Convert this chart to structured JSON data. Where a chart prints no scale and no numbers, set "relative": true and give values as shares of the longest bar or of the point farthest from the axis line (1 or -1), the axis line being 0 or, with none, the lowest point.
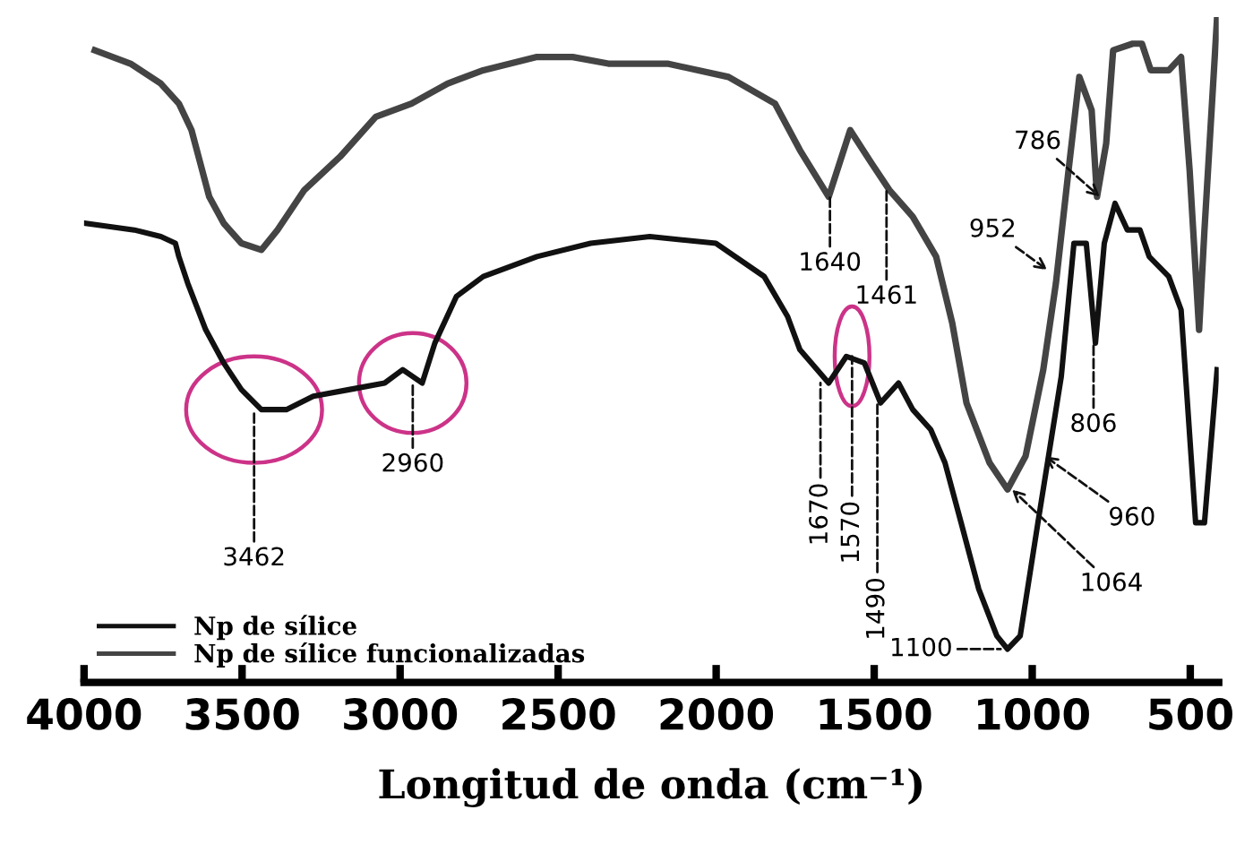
{
  "chart_data": {
    "type": "line",
    "relative": true,
    "xlabel": "Longitud de onda (cm⁻¹)",
    "xlim": [
      4000,
      410
    ],
    "xticks": [
      4000,
      3500,
      3000,
      2500,
      2000,
      1500,
      1000,
      500
    ],
    "grid": false,
    "legend": "bottom left",
    "marker": "none",
    "line_style": "solid",
    "series": [
      {
        "name": "Np de sílice",
        "color": "#111111",
        "x": [
          3994,
          3841,
          3757,
          3711,
          3700,
          3672,
          3615,
          3558,
          3502,
          3439,
          3360,
          3275,
          3162,
          3049,
          2992,
          2930,
          2890,
          2822,
          2737,
          2567,
          2397,
          2210,
          2001,
          1848,
          1774,
          1735,
          1644,
          1588,
          1531,
          1480,
          1423,
          1378,
          1321,
          1276,
          1225,
          1169,
          1112,
          1078,
          1038,
          982,
          908,
          868,
          829,
          800,
          772,
          738,
          699,
          659,
          630,
          568,
          529,
          483,
          455,
          415
        ],
        "values": [
          0.69,
          0.68,
          0.67,
          0.66,
          0.64,
          0.6,
          0.53,
          0.48,
          0.44,
          0.41,
          0.41,
          0.43,
          0.44,
          0.45,
          0.47,
          0.45,
          0.51,
          0.58,
          0.61,
          0.64,
          0.66,
          0.67,
          0.66,
          0.61,
          0.55,
          0.5,
          0.45,
          0.49,
          0.48,
          0.42,
          0.45,
          0.41,
          0.38,
          0.33,
          0.24,
          0.14,
          0.07,
          0.05,
          0.07,
          0.24,
          0.46,
          0.66,
          0.66,
          0.51,
          0.66,
          0.72,
          0.68,
          0.68,
          0.64,
          0.61,
          0.56,
          0.24,
          0.24,
          0.47
        ]
      },
      {
        "name": "Np de sílice funcionalizadas",
        "color": "#444444",
        "x": [
          3966,
          3853,
          3757,
          3700,
          3660,
          3632,
          3604,
          3558,
          3502,
          3439,
          3388,
          3303,
          3190,
          3077,
          2964,
          2850,
          2737,
          2567,
          2454,
          2341,
          2154,
          1961,
          1814,
          1735,
          1644,
          1576,
          1508,
          1452,
          1378,
          1304,
          1253,
          1208,
          1135,
          1078,
          1021,
          965,
          925,
          885,
          851,
          812,
          795,
          766,
          744,
          682,
          653,
          625,
          568,
          529,
          502,
          472,
          455,
          415
        ],
        "values": [
          0.95,
          0.93,
          0.9,
          0.87,
          0.83,
          0.78,
          0.73,
          0.69,
          0.66,
          0.65,
          0.68,
          0.74,
          0.79,
          0.85,
          0.87,
          0.9,
          0.92,
          0.94,
          0.94,
          0.93,
          0.93,
          0.91,
          0.87,
          0.8,
          0.73,
          0.83,
          0.78,
          0.74,
          0.7,
          0.64,
          0.54,
          0.42,
          0.33,
          0.29,
          0.34,
          0.47,
          0.6,
          0.77,
          0.91,
          0.86,
          0.73,
          0.81,
          0.95,
          0.96,
          0.96,
          0.92,
          0.92,
          0.94,
          0.77,
          0.53,
          0.68,
          1.0
        ]
      }
    ],
    "annotations": [
      {
        "text": "3462",
        "x": 3462,
        "y": 0.41
      },
      {
        "text": "2960",
        "x": 2960,
        "y": 0.45
      },
      {
        "text": "1640",
        "x": 1640,
        "y": 0.73
      },
      {
        "text": "1461",
        "x": 1461,
        "y": 0.74
      },
      {
        "text": "1670",
        "x": 1670,
        "y": 0.45
      },
      {
        "text": "1570",
        "x": 1570,
        "y": 0.49
      },
      {
        "text": "1490",
        "x": 1490,
        "y": 0.42
      },
      {
        "text": "1100",
        "x": 1100,
        "y": 0.05
      },
      {
        "text": "1064",
        "x": 1064,
        "y": 0.29
      },
      {
        "text": "960",
        "x": 960,
        "y": 0.34
      },
      {
        "text": "952",
        "x": 952,
        "y": 0.62
      },
      {
        "text": "806",
        "x": 806,
        "y": 0.51
      },
      {
        "text": "786",
        "x": 786,
        "y": 0.73
      }
    ]
  }
}
